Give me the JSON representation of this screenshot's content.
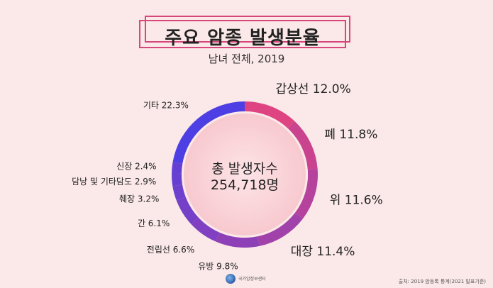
{
  "header": {
    "title": "주요 암종 발생분율",
    "subtitle": "남녀 전체, 2019"
  },
  "center": {
    "line1": "총 발생자수",
    "line2": "254,718명"
  },
  "footer": {
    "logo_text": "국가암정보센터",
    "source": "출처: 2019 암등록 통계(2021 발표기준)"
  },
  "colors": {
    "accent": "#d6477c",
    "ring_start": "#e8447a",
    "ring_end": "#3a3ef0",
    "inner_fill": "#fadadd",
    "background": "#fbe8e8"
  },
  "chart_data": {
    "type": "pie",
    "style": "donut",
    "title": "주요 암종 발생분율",
    "subtitle": "남녀 전체, 2019",
    "unit": "%",
    "categories": [
      "갑상선",
      "폐",
      "위",
      "대장",
      "유방",
      "전립선",
      "간",
      "췌장",
      "담낭 및 기타담도",
      "신장",
      "기타"
    ],
    "values": [
      12.0,
      11.8,
      11.6,
      11.4,
      9.8,
      6.6,
      6.1,
      3.2,
      2.9,
      2.4,
      22.3
    ],
    "labels": [
      "갑상선 12.0%",
      "폐 11.8%",
      "위 11.6%",
      "대장 11.4%",
      "유방 9.8%",
      "전립선 6.6%",
      "간 6.1%",
      "췌장 3.2%",
      "담낭 및 기타담도 2.9%",
      "신장 2.4%",
      "기타 22.3%"
    ]
  }
}
